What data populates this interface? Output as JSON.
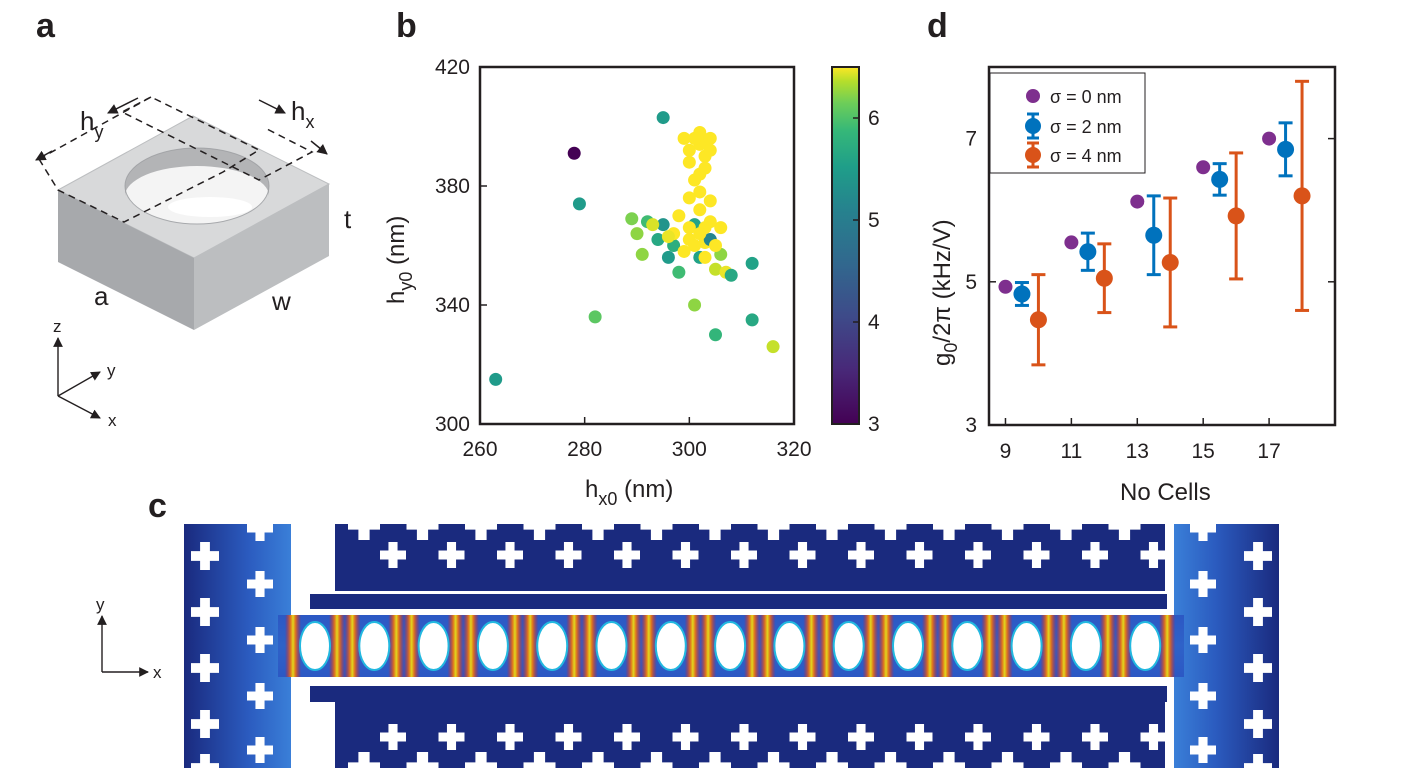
{
  "panels": {
    "a": {
      "label": "a",
      "dims": {
        "hy": "h",
        "hy_sub": "y",
        "hx": "h",
        "hx_sub": "x",
        "t": "t",
        "a": "a",
        "w": "w"
      },
      "axes": {
        "z": "z",
        "y": "y",
        "x": "x"
      }
    },
    "b": {
      "label": "b",
      "xlabel": "h",
      "xlabel_sub": "x0",
      "xlabel_unit": " (nm)",
      "ylabel": "h",
      "ylabel_sub": "y0",
      "ylabel_unit": " (nm)",
      "colorbar_ticks": [
        "3",
        "4",
        "5",
        "6"
      ]
    },
    "c": {
      "label": "c",
      "axes": {
        "y": "y",
        "x": "x"
      }
    },
    "d": {
      "label": "d",
      "ylabel_prefix": "g",
      "ylabel_sub": "0",
      "ylabel_rest": "/2π (kHz/V)",
      "xlabel": "No Cells",
      "legend": [
        {
          "label": "σ = 0 nm",
          "color": "#7e2f8e"
        },
        {
          "label": "σ = 2 nm",
          "color": "#0072bd"
        },
        {
          "label": "σ = 4 nm",
          "color": "#d95319"
        }
      ]
    }
  },
  "chart_data": [
    {
      "id": "b",
      "type": "scatter",
      "xlabel": "hx0 (nm)",
      "ylabel": "hy0 (nm)",
      "xlim": [
        260,
        320
      ],
      "ylim": [
        300,
        420
      ],
      "xticks": [
        260,
        280,
        300,
        320
      ],
      "yticks": [
        300,
        340,
        380,
        420
      ],
      "colorbar": {
        "min": 3,
        "max": 6.5,
        "ticks": [
          3,
          4,
          5,
          6
        ],
        "colormap": "viridis"
      },
      "points": [
        {
          "x": 263,
          "y": 315,
          "c": 4.9
        },
        {
          "x": 278,
          "y": 391,
          "c": 3.0
        },
        {
          "x": 279,
          "y": 374,
          "c": 4.9
        },
        {
          "x": 282,
          "y": 336,
          "c": 5.6
        },
        {
          "x": 289,
          "y": 369,
          "c": 5.8
        },
        {
          "x": 290,
          "y": 364,
          "c": 5.9
        },
        {
          "x": 291,
          "y": 357,
          "c": 5.9
        },
        {
          "x": 292,
          "y": 368,
          "c": 5.4
        },
        {
          "x": 294,
          "y": 362,
          "c": 5.1
        },
        {
          "x": 295,
          "y": 403,
          "c": 4.9
        },
        {
          "x": 295,
          "y": 367,
          "c": 4.8
        },
        {
          "x": 296,
          "y": 356,
          "c": 4.9
        },
        {
          "x": 297,
          "y": 360,
          "c": 5.2
        },
        {
          "x": 298,
          "y": 351,
          "c": 5.4
        },
        {
          "x": 299,
          "y": 396,
          "c": 6.5
        },
        {
          "x": 300,
          "y": 392,
          "c": 6.5
        },
        {
          "x": 300,
          "y": 388,
          "c": 6.5
        },
        {
          "x": 300,
          "y": 362,
          "c": 6.5
        },
        {
          "x": 301,
          "y": 340,
          "c": 5.9
        },
        {
          "x": 301,
          "y": 367,
          "c": 5.0
        },
        {
          "x": 302,
          "y": 398,
          "c": 6.5
        },
        {
          "x": 302,
          "y": 394,
          "c": 6.5
        },
        {
          "x": 302,
          "y": 384,
          "c": 6.5
        },
        {
          "x": 302,
          "y": 378,
          "c": 6.5
        },
        {
          "x": 302,
          "y": 372,
          "c": 6.5
        },
        {
          "x": 302,
          "y": 356,
          "c": 5.0
        },
        {
          "x": 303,
          "y": 395,
          "c": 6.5
        },
        {
          "x": 303,
          "y": 390,
          "c": 6.5
        },
        {
          "x": 303,
          "y": 366,
          "c": 6.5
        },
        {
          "x": 303,
          "y": 361,
          "c": 6.5
        },
        {
          "x": 304,
          "y": 396,
          "c": 6.5
        },
        {
          "x": 304,
          "y": 375,
          "c": 6.5
        },
        {
          "x": 304,
          "y": 362,
          "c": 4.6
        },
        {
          "x": 305,
          "y": 330,
          "c": 5.3
        },
        {
          "x": 305,
          "y": 352,
          "c": 6.2
        },
        {
          "x": 306,
          "y": 357,
          "c": 5.9
        },
        {
          "x": 306,
          "y": 366,
          "c": 6.5
        },
        {
          "x": 307,
          "y": 351,
          "c": 6.4
        },
        {
          "x": 308,
          "y": 350,
          "c": 5.1
        },
        {
          "x": 312,
          "y": 354,
          "c": 5.0
        },
        {
          "x": 312,
          "y": 335,
          "c": 5.1
        },
        {
          "x": 316,
          "y": 326,
          "c": 6.2
        },
        {
          "x": 298,
          "y": 370,
          "c": 6.5
        },
        {
          "x": 300,
          "y": 366,
          "c": 6.5
        },
        {
          "x": 301,
          "y": 360,
          "c": 6.5
        },
        {
          "x": 299,
          "y": 358,
          "c": 6.5
        },
        {
          "x": 304,
          "y": 368,
          "c": 6.5
        },
        {
          "x": 303,
          "y": 356,
          "c": 6.5
        },
        {
          "x": 300,
          "y": 376,
          "c": 6.5
        },
        {
          "x": 301,
          "y": 382,
          "c": 6.5
        },
        {
          "x": 303,
          "y": 386,
          "c": 6.5
        },
        {
          "x": 297,
          "y": 364,
          "c": 6.5
        },
        {
          "x": 305,
          "y": 360,
          "c": 6.5
        },
        {
          "x": 302,
          "y": 364,
          "c": 6.5
        },
        {
          "x": 293,
          "y": 367,
          "c": 6.3
        },
        {
          "x": 296,
          "y": 363,
          "c": 6.4
        },
        {
          "x": 301,
          "y": 396,
          "c": 6.5
        },
        {
          "x": 304,
          "y": 392,
          "c": 6.5
        }
      ]
    },
    {
      "id": "d",
      "type": "scatter",
      "xlabel": "No Cells",
      "ylabel": "g0/2π (kHz/V)",
      "xlim": [
        8.5,
        19
      ],
      "ylim": [
        3,
        8
      ],
      "xticks": [
        9,
        11,
        13,
        15,
        17
      ],
      "yticks": [
        3,
        5,
        7
      ],
      "series": [
        {
          "name": "σ = 0 nm",
          "x": [
            9,
            11,
            13,
            15,
            17
          ],
          "y": [
            4.93,
            5.55,
            6.12,
            6.6,
            7.0
          ],
          "err": [
            0,
            0,
            0,
            0,
            0
          ]
        },
        {
          "name": "σ = 2 nm",
          "x": [
            9.5,
            11.5,
            13.5,
            15.5,
            17.5
          ],
          "y": [
            4.83,
            5.42,
            5.65,
            6.43,
            6.85
          ],
          "err": [
            0.16,
            0.26,
            0.55,
            0.22,
            0.37
          ]
        },
        {
          "name": "σ = 4 nm",
          "x": [
            10,
            12,
            14,
            16,
            18
          ],
          "y": [
            4.47,
            5.05,
            5.27,
            5.92,
            6.2
          ],
          "err": [
            0.63,
            0.48,
            0.9,
            0.88,
            1.6
          ]
        }
      ]
    }
  ]
}
